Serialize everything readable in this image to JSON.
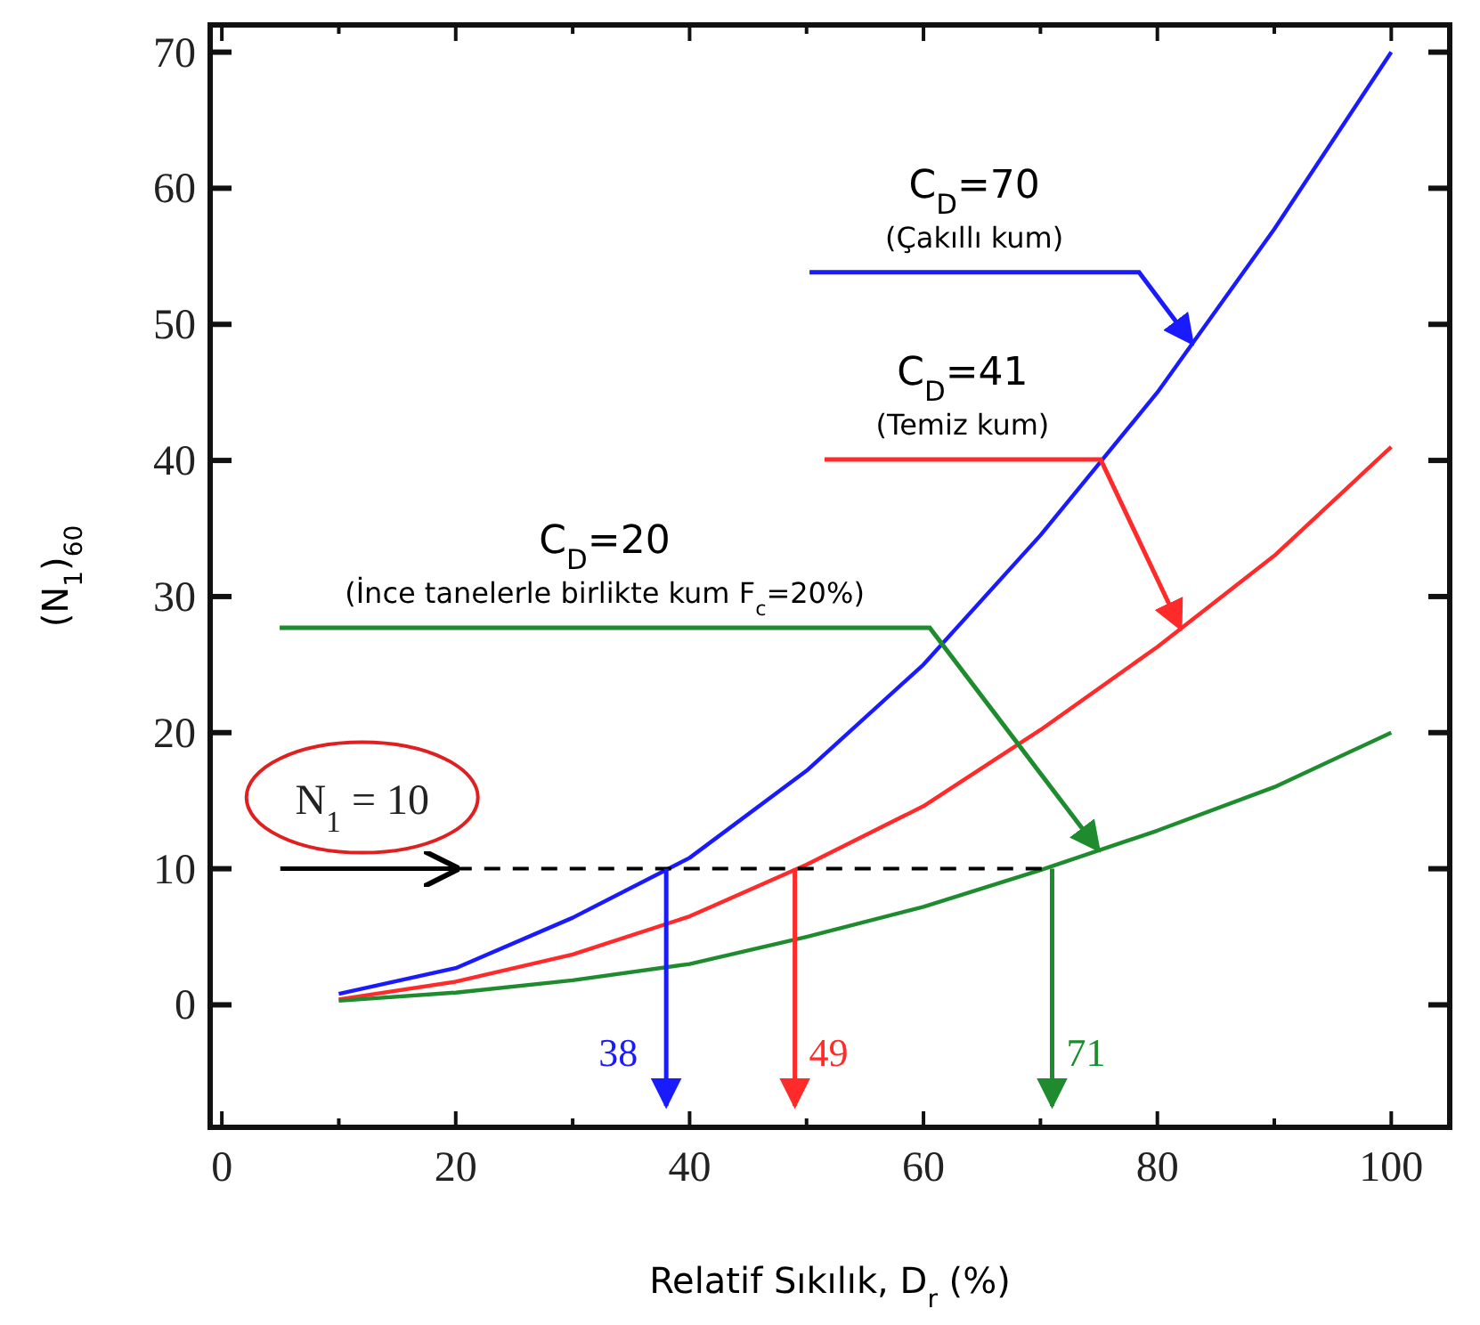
{
  "chart_data": {
    "type": "line",
    "xlabel": "Relatif Sıkılık, D$_{r}$ (%)",
    "ylabel": "(N$_{1}$)$_{60}$",
    "x": [
      10,
      20,
      30,
      40,
      50,
      60,
      70,
      80,
      90,
      100
    ],
    "xlim": [
      -1,
      105
    ],
    "ylim": [
      -9,
      72
    ],
    "xticks": [
      0,
      {
        "value": 10,
        "label": null
      },
      20,
      {
        "value": 30,
        "label": null
      },
      40,
      {
        "value": 50,
        "label": null
      },
      60,
      {
        "value": 70,
        "label": null
      },
      80,
      {
        "value": 90,
        "label": null
      },
      100
    ],
    "yticks": [
      0,
      10,
      20,
      30,
      40,
      50,
      60,
      70
    ],
    "grid": false,
    "marker": "none",
    "line_style": "solid",
    "series": [
      {
        "color": "#1a1aff",
        "values": [
          0.8,
          2.7,
          6.4,
          10.8,
          17.2,
          25,
          34.5,
          45,
          57,
          70
        ]
      },
      {
        "color": "#ff2a2a",
        "values": [
          0.4,
          1.7,
          3.7,
          6.5,
          10.3,
          14.6,
          20.2,
          26.3,
          33,
          41
        ]
      },
      {
        "color": "#1e8c2e",
        "values": [
          0.3,
          0.9,
          1.8,
          3.0,
          5.0,
          7.2,
          9.9,
          12.8,
          16,
          20
        ]
      }
    ],
    "ref_lines": [
      {
        "axis": "y",
        "value": 10,
        "label": "N$_{1}$ = 10",
        "line_style": "dashed",
        "color": "#000000"
      }
    ],
    "annotations": [
      "C$_{D}$=70",
      "(Çakıllı kum)",
      "C$_{D}$=41",
      "(Temiz kum)",
      "C$_{D}$=20",
      "(İnce tanelerle birlikte kum F$_{c}$=20%)",
      {
        "text": "38",
        "x": 38,
        "y": 10
      },
      {
        "text": "49",
        "x": 49,
        "y": 10
      },
      {
        "text": "71",
        "x": 71,
        "y": 10
      }
    ]
  }
}
